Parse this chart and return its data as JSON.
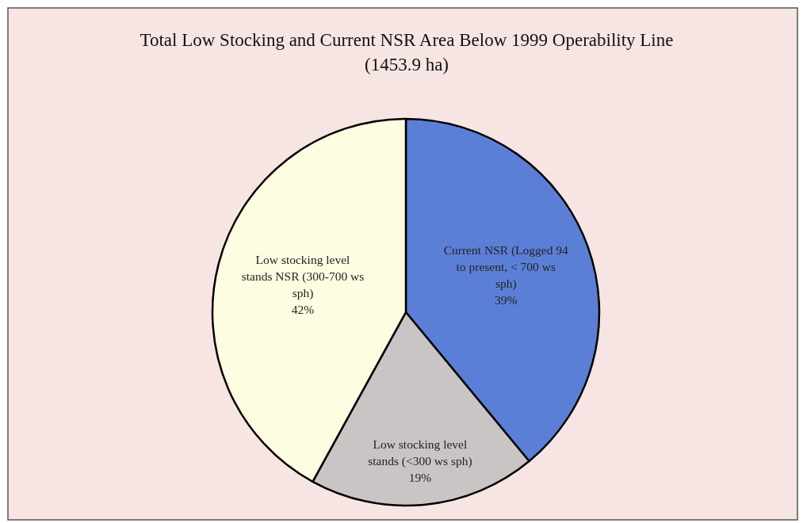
{
  "chart_data": {
    "type": "pie",
    "title": "Total Low Stocking and Current NSR Area Below 1999 Operability Line (1453.9 ha)",
    "categories": [
      "Current NSR  (Logged 94 to present, < 700 ws sph)",
      "Low stocking level stands (<300 ws sph)",
      "Low stocking level stands NSR (300-700 ws sph)"
    ],
    "values": [
      39,
      19,
      42
    ],
    "value_labels": [
      "39%",
      "19%",
      "42%"
    ],
    "colors": [
      "#5b7fd6",
      "#c9c5c5",
      "#fefde2"
    ]
  }
}
